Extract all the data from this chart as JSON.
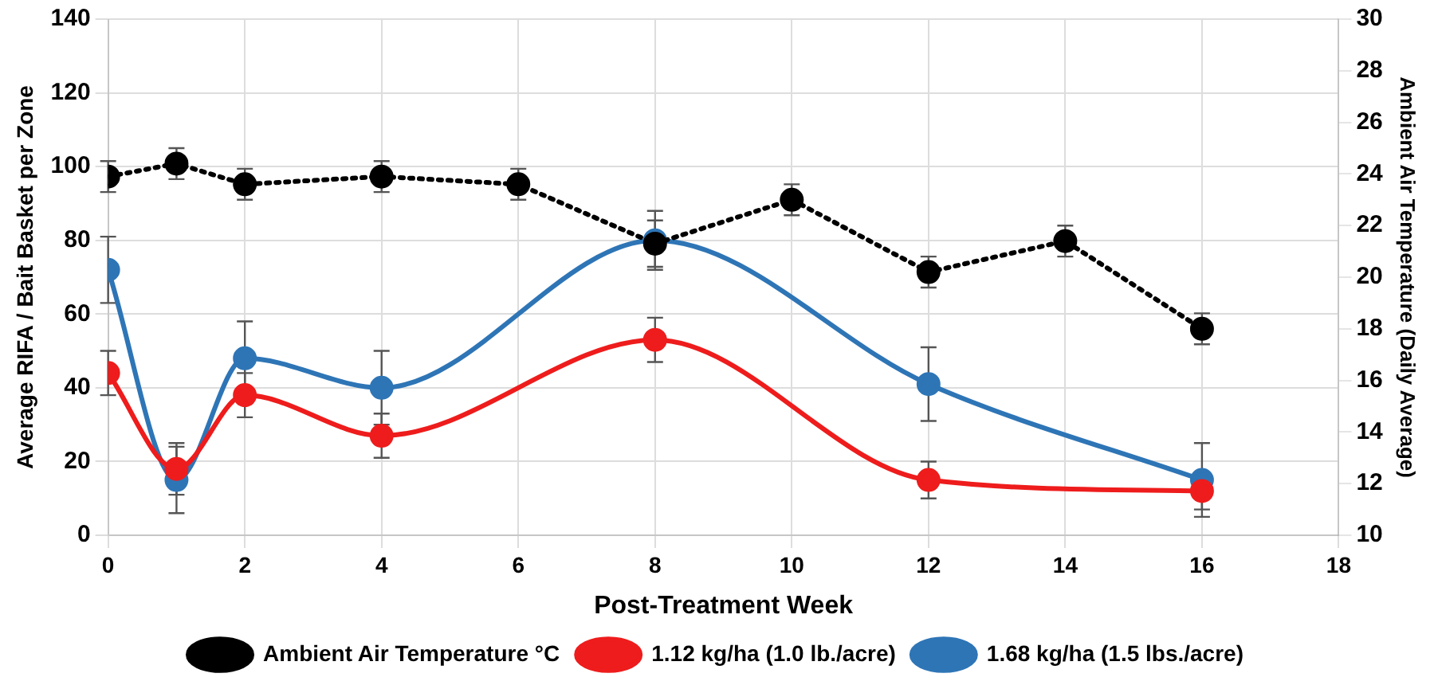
{
  "chart_data": {
    "type": "line",
    "xlabel": "Post-Treatment Week",
    "ylabel": "Average RIFA / Bait Basket per Zone",
    "y2label": "Ambient Air Temperature (Daily Average)",
    "xlim": [
      0,
      18
    ],
    "xticks": [
      0,
      2,
      4,
      6,
      8,
      10,
      12,
      14,
      16,
      18
    ],
    "ylim": [
      0,
      140
    ],
    "yticks": [
      0,
      20,
      40,
      60,
      80,
      100,
      120,
      140
    ],
    "y2lim": [
      10,
      30
    ],
    "y2ticks": [
      10,
      12,
      14,
      16,
      18,
      20,
      22,
      24,
      26,
      28,
      30
    ],
    "grid": true,
    "legend": "bottom",
    "marker": "circle",
    "series": [
      {
        "name": "1.12 kg/ha (1.0 lb./acre)",
        "color": "#ee1c1c",
        "x": [
          0,
          1,
          2,
          4,
          8,
          12,
          16
        ],
        "values": [
          44,
          18,
          38,
          27,
          53,
          15,
          12
        ],
        "errors": [
          6,
          7,
          6,
          6,
          6,
          5,
          5
        ],
        "line_style": "solid"
      },
      {
        "name": "1.68 kg/ha (1.5 lbs./acre)",
        "color": "#2e75b6",
        "x": [
          0,
          1,
          2,
          4,
          8,
          12,
          16
        ],
        "values": [
          72,
          15,
          48,
          40,
          80,
          41,
          15
        ],
        "errors": [
          9,
          9,
          10,
          10,
          8,
          10,
          10
        ],
        "line_style": "solid"
      },
      {
        "name": "Ambient Air Temperature °C",
        "color": "#000000",
        "axis": "y2",
        "x": [
          0,
          1,
          2,
          4,
          6,
          8,
          10,
          12,
          14,
          16
        ],
        "values": [
          23.9,
          24.4,
          23.6,
          23.9,
          23.6,
          21.3,
          23.0,
          20.2,
          21.4,
          18.0
        ],
        "errors": [
          0.6,
          0.6,
          0.6,
          0.6,
          0.6,
          0.9,
          0.6,
          0.6,
          0.6,
          0.6
        ],
        "line_style": "dotted"
      }
    ]
  }
}
